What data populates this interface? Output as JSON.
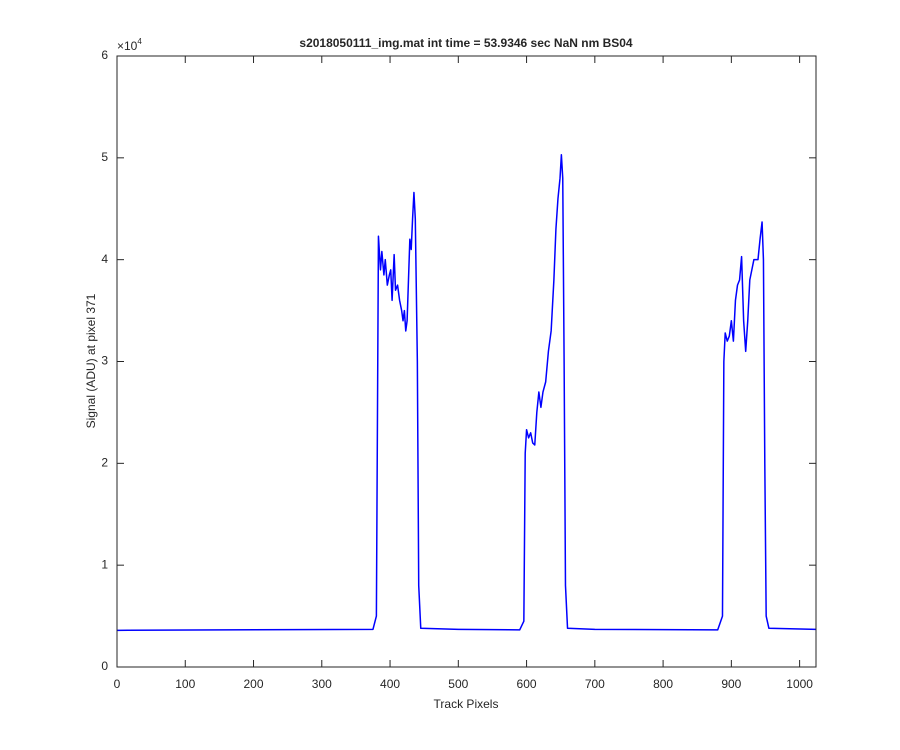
{
  "chart_data": {
    "type": "line",
    "title": "s2018050111_img.mat int time = 53.9346 sec  NaN nm BS04",
    "x_label": "Track Pixels",
    "y_label": "Signal (ADU) at pixel 371",
    "y_multiplier": {
      "base": "×10",
      "power": "4"
    },
    "xlim": [
      0,
      1024
    ],
    "ylim": [
      0,
      60000
    ],
    "xticks": [
      0,
      100,
      200,
      300,
      400,
      500,
      600,
      700,
      800,
      900,
      1000
    ],
    "yticks": [
      {
        "value": 0,
        "label": "0"
      },
      {
        "value": 10000,
        "label": "1"
      },
      {
        "value": 20000,
        "label": "2"
      },
      {
        "value": 30000,
        "label": "3"
      },
      {
        "value": 40000,
        "label": "4"
      },
      {
        "value": 50000,
        "label": "5"
      },
      {
        "value": 60000,
        "label": "6"
      }
    ],
    "grid": false,
    "x": [
      0,
      375,
      380,
      382,
      383,
      386,
      388,
      391,
      393,
      396,
      399,
      401,
      403,
      406,
      408,
      411,
      414,
      417,
      419,
      421,
      423,
      425,
      427,
      429,
      431,
      433,
      435,
      437,
      440,
      442,
      445,
      500,
      590,
      596,
      598,
      600,
      603,
      606,
      609,
      612,
      615,
      618,
      621,
      624,
      628,
      632,
      636,
      640,
      643,
      646,
      649,
      651,
      653,
      655,
      657,
      660,
      700,
      880,
      887,
      889,
      891,
      894,
      897,
      900,
      903,
      906,
      909,
      912,
      915,
      918,
      921,
      924,
      927,
      930,
      933,
      936,
      939,
      942,
      945,
      947,
      949,
      951,
      955,
      1024
    ],
    "series": [
      {
        "name": "signal",
        "color": "#0000ff",
        "values": [
          3600,
          3700,
          5000,
          30000,
          42300,
          39000,
          40800,
          38500,
          40000,
          37500,
          38500,
          39000,
          36000,
          40500,
          37000,
          37500,
          36000,
          35000,
          34000,
          35000,
          33000,
          34000,
          38000,
          42000,
          41000,
          44000,
          46600,
          44000,
          30000,
          8000,
          3800,
          3700,
          3650,
          4500,
          21000,
          23300,
          22500,
          23000,
          22000,
          21800,
          25000,
          27000,
          25500,
          27000,
          28000,
          31000,
          33000,
          38000,
          43000,
          46000,
          48000,
          50300,
          48000,
          30000,
          8000,
          3800,
          3700,
          3650,
          5000,
          30000,
          32800,
          32000,
          32500,
          34000,
          32000,
          36000,
          37500,
          38000,
          40300,
          34000,
          31000,
          34000,
          38000,
          39000,
          40000,
          40000,
          40000,
          42000,
          43700,
          40000,
          20000,
          5000,
          3800,
          3700
        ]
      }
    ]
  }
}
